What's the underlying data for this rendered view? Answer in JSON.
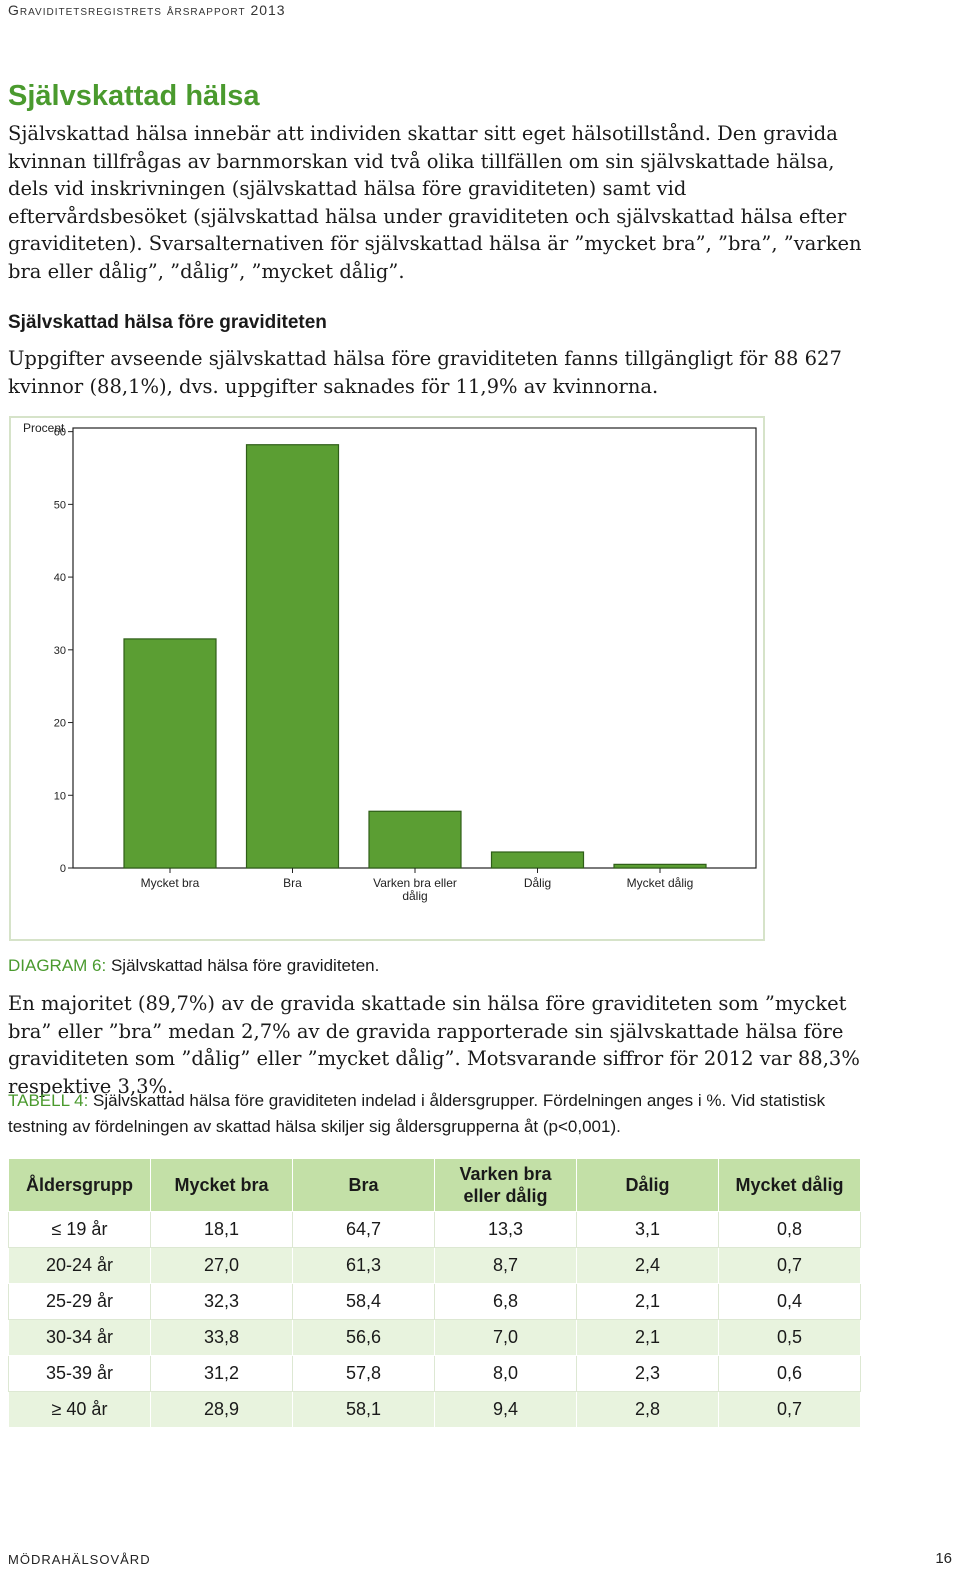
{
  "header": {
    "running_title": "Graviditetsregistrets årsrapport 2013"
  },
  "section": {
    "title": "Självskattad hälsa",
    "intro": "Självskattad hälsa innebär att individen skattar sitt eget hälsotillstånd. Den gravida kvinnan tillfrågas av barnmorskan vid två olika tillfällen om sin självskattade hälsa, dels vid inskrivningen (självskattad hälsa före graviditeten) samt vid eftervårdsbesöket (självskattad hälsa under graviditeten och självskattad hälsa efter graviditeten). Svarsalternativen för självskattad hälsa är ”mycket bra”, ”bra”, ”varken bra eller dålig”, ”dålig”, ”mycket dålig”."
  },
  "subsection": {
    "title": "Självskattad hälsa före graviditeten",
    "text": "Uppgifter avseende självskattad hälsa före graviditeten fanns tillgängligt för 88 627 kvinnor (88,1%), dvs. uppgifter saknades för 11,9% av kvinnorna."
  },
  "chart_data": {
    "type": "bar",
    "ylabel": "Procent",
    "categories": [
      "Mycket bra",
      "Bra",
      "Varken bra eller dålig",
      "Dålig",
      "Mycket dålig"
    ],
    "values": [
      31.5,
      58.2,
      7.8,
      2.2,
      0.5
    ],
    "ylim": [
      0,
      60
    ],
    "yticks": [
      0,
      10,
      20,
      30,
      40,
      50,
      60
    ],
    "bar_color": "#5b9e33",
    "grid": false
  },
  "diagram_caption": {
    "label": "DIAGRAM 6:",
    "text": " Självskattad hälsa före graviditeten."
  },
  "result_text": "En majoritet (89,7%) av de gravida skattade sin hälsa före graviditeten som ”mycket bra” eller ”bra” medan 2,7% av de gravida rapporterade sin självskattade hälsa före graviditeten som ”dålig” eller ”mycket dålig”. Motsvarande siffror för 2012 var 88,3% respektive 3,3%.",
  "table_caption": {
    "label": "TABELL 4:",
    "text": " Självskattad hälsa före graviditeten indelad i åldersgrupper. Fördelningen anges i %. Vid statistisk testning av fördelningen av skattad hälsa skiljer sig åldersgrupperna åt (p<0,001)."
  },
  "table": {
    "headers": [
      "Åldersgrupp",
      "Mycket bra",
      "Bra",
      "Varken bra eller dålig",
      "Dålig",
      "Mycket dålig"
    ],
    "rows": [
      [
        "≤ 19 år",
        "18,1",
        "64,7",
        "13,3",
        "3,1",
        "0,8"
      ],
      [
        "20-24 år",
        "27,0",
        "61,3",
        "8,7",
        "2,4",
        "0,7"
      ],
      [
        "25-29 år",
        "32,3",
        "58,4",
        "6,8",
        "2,1",
        "0,4"
      ],
      [
        "30-34 år",
        "33,8",
        "56,6",
        "7,0",
        "2,1",
        "0,5"
      ],
      [
        "35-39 år",
        "31,2",
        "57,8",
        "8,0",
        "2,3",
        "0,6"
      ],
      [
        "≥ 40 år",
        "28,9",
        "58,1",
        "9,4",
        "2,8",
        "0,7"
      ]
    ]
  },
  "footer": {
    "left": "Mödrahälsovård",
    "page": "16"
  }
}
